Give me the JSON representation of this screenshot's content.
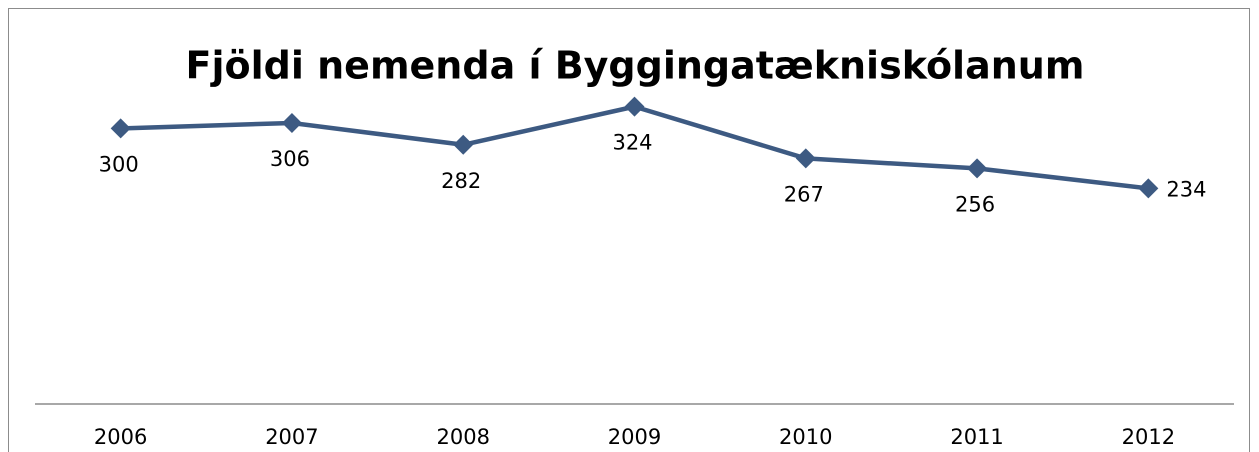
{
  "chart_data": {
    "type": "line",
    "title": "Fjöldi nemenda í Byggingatækniskólanum",
    "categories": [
      "2006",
      "2007",
      "2008",
      "2009",
      "2010",
      "2011",
      "2012"
    ],
    "values": [
      300,
      306,
      282,
      324,
      267,
      256,
      234
    ],
    "color": "#3d5a82",
    "ylim": [
      0,
      350
    ],
    "grid": false
  }
}
